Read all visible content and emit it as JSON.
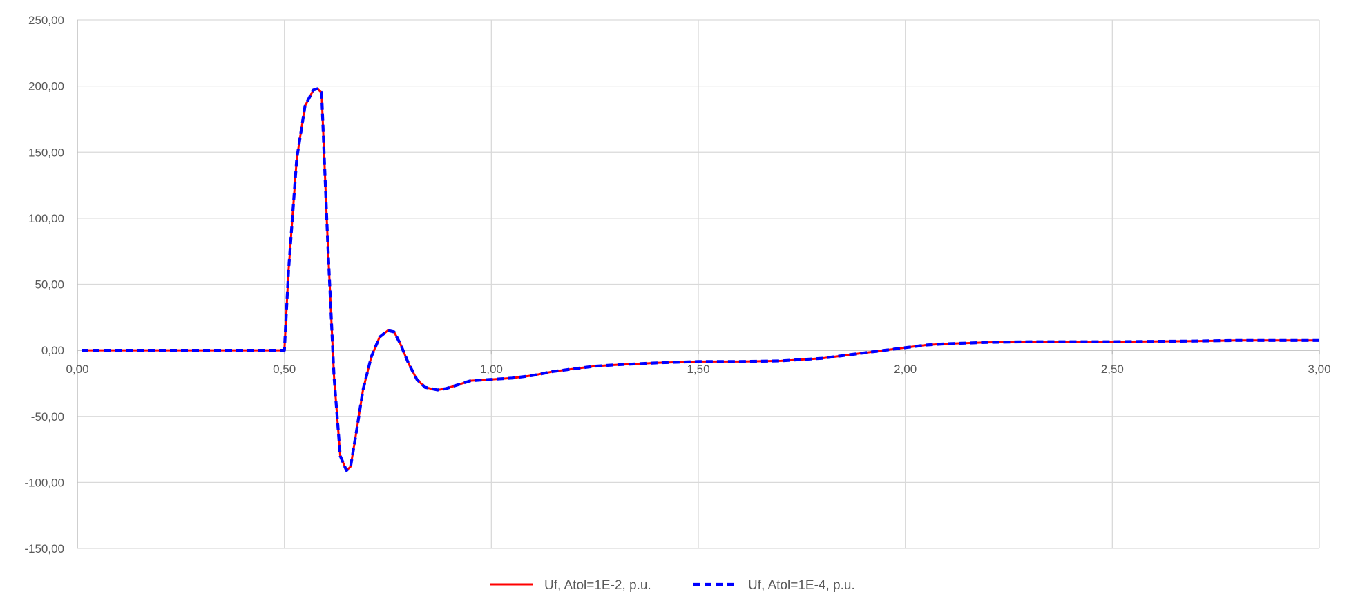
{
  "chart_data": {
    "type": "line",
    "title": "",
    "xlabel": "",
    "ylabel": "",
    "xlim": [
      0,
      3
    ],
    "ylim": [
      -150,
      250
    ],
    "x_ticks": [
      0,
      0.5,
      1,
      1.5,
      2,
      2.5,
      3
    ],
    "x_tick_labels": [
      "0,00",
      "0,50",
      "1,00",
      "1,50",
      "2,00",
      "2,50",
      "3,00"
    ],
    "y_ticks": [
      250,
      200,
      150,
      100,
      50,
      0,
      -50,
      -100,
      -150
    ],
    "y_tick_labels": [
      "250,00",
      "200,00",
      "150,00",
      "100,00",
      "50,00",
      "0,00",
      "-50,00",
      "-100,00",
      "-150,00"
    ],
    "grid": true,
    "legend_position": "bottom",
    "colors": {
      "grid": "#d9d9d9",
      "axis": "#bfbfbf",
      "series1": "#ff0000",
      "series2": "#0000ff"
    },
    "x": [
      0.01,
      0.1,
      0.2,
      0.3,
      0.4,
      0.49,
      0.5,
      0.51,
      0.53,
      0.55,
      0.57,
      0.58,
      0.59,
      0.605,
      0.62,
      0.635,
      0.65,
      0.66,
      0.675,
      0.69,
      0.71,
      0.73,
      0.75,
      0.765,
      0.78,
      0.8,
      0.82,
      0.84,
      0.87,
      0.89,
      0.91,
      0.95,
      1.0,
      1.05,
      1.1,
      1.15,
      1.2,
      1.25,
      1.3,
      1.4,
      1.5,
      1.6,
      1.7,
      1.8,
      1.9,
      1.95,
      2.0,
      2.05,
      2.1,
      2.2,
      2.3,
      2.5,
      2.7,
      2.8,
      2.9,
      3.0
    ],
    "series": [
      {
        "name": "Uf, Atol=1E-2, p.u.",
        "values": [
          0,
          0,
          0,
          0,
          0,
          0,
          0,
          60,
          145,
          185,
          197,
          198,
          195,
          80,
          -20,
          -80,
          -91,
          -88,
          -60,
          -30,
          -5,
          10,
          15,
          14,
          5,
          -10,
          -22,
          -28,
          -30,
          -29,
          -27,
          -23,
          -22,
          -21,
          -19,
          -16,
          -14,
          -12,
          -11,
          -9.5,
          -8.5,
          -8.5,
          -8,
          -6,
          -2,
          0,
          2,
          4,
          5,
          6,
          6.5,
          6.5,
          7,
          7.5,
          7.5,
          7.5
        ]
      },
      {
        "name": "Uf, Atol=1E-4, p.u.",
        "values": [
          0,
          0,
          0,
          0,
          0,
          0,
          0,
          60,
          145,
          185,
          197,
          198,
          195,
          80,
          -20,
          -80,
          -91,
          -88,
          -60,
          -30,
          -5,
          10,
          15,
          14,
          5,
          -10,
          -22,
          -28,
          -30,
          -29,
          -27,
          -23,
          -22,
          -21,
          -19,
          -16,
          -14,
          -12,
          -11,
          -9.5,
          -8.5,
          -8.5,
          -8,
          -6,
          -2,
          0,
          2,
          4,
          5,
          6,
          6.5,
          6.5,
          7,
          7.5,
          7.5,
          7.5
        ]
      }
    ]
  }
}
